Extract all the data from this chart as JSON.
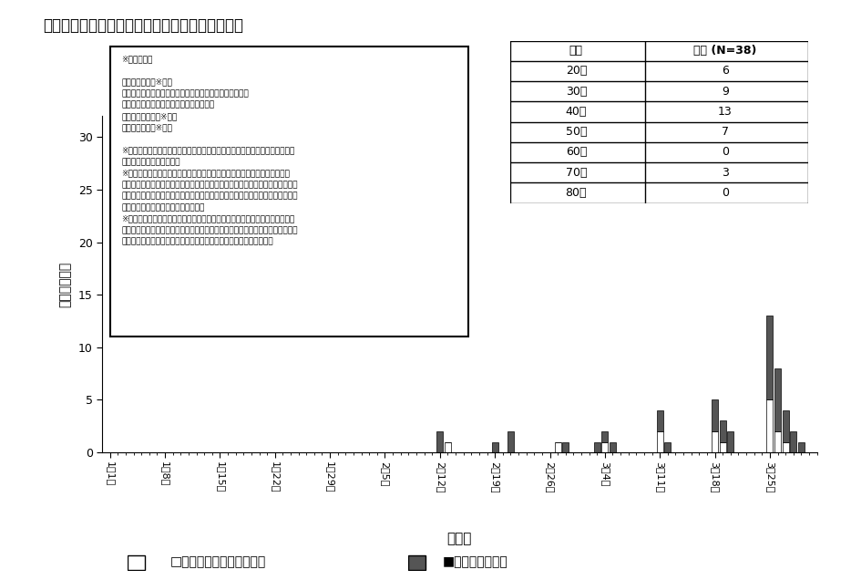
{
  "title": "【図５．夜の街クラスターについて（東京都）】",
  "xlabel": "確定日",
  "ylabel": "症例数［例］",
  "dates": [
    "1月1日",
    "1月8日",
    "1月15日",
    "1月22日",
    "1月29日",
    "2月5日",
    "2月12日",
    "2月19日",
    "2月26日",
    "3月4日",
    "3月11日",
    "3月18日",
    "3月25日"
  ],
  "white_bars": [
    0,
    0,
    0,
    0,
    0,
    0,
    1,
    0,
    1,
    1,
    2,
    2,
    5
  ],
  "gray_bars": [
    0,
    0,
    0,
    0,
    0,
    0,
    2,
    2,
    1,
    3,
    3,
    7,
    20
  ],
  "extra_days_per_week": 6,
  "table_ages": [
    "年代",
    "20代",
    "30代",
    "40代",
    "50代",
    "60代",
    "70代",
    "80代"
  ],
  "table_counts": [
    "人数 (N=38)",
    "6",
    "9",
    "13",
    "7",
    "0",
    "3",
    "0"
  ],
  "legend_white": "□特定業種に関連した事例",
  "legend_gray": "■その他の孤発例",
  "ylim": [
    0,
    32
  ],
  "yticks": [
    0,
    5,
    10,
    15,
    20,
    25,
    30
  ]
}
